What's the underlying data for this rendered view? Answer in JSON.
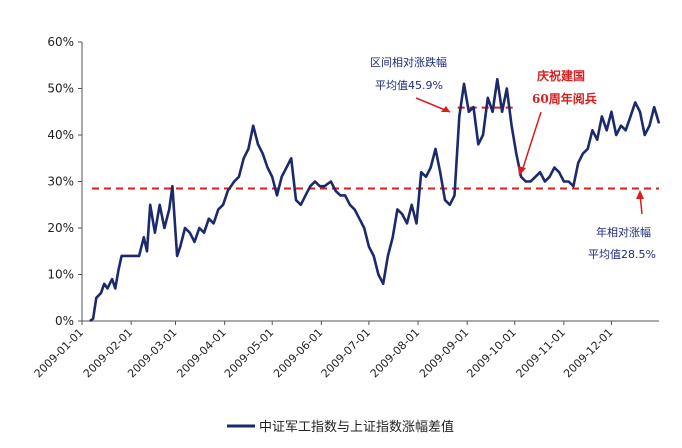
{
  "chart_data": {
    "type": "line",
    "xlabel": "",
    "ylabel": "",
    "ylim": [
      0,
      60
    ],
    "y_ticks": [
      "0%",
      "10%",
      "20%",
      "30%",
      "40%",
      "50%",
      "60%"
    ],
    "x_ticks": [
      "2009-01-01",
      "2009-02-01",
      "2009-03-01",
      "2009-04-01",
      "2009-05-01",
      "2009-06-01",
      "2009-07-01",
      "2009-08-01",
      "2009-09-01",
      "2009-10-01",
      "2009-11-01",
      "2009-12-01"
    ],
    "x_range": [
      "2009-01-01",
      "2009-12-31"
    ],
    "grid": false,
    "legend_position": "bottom",
    "series": [
      {
        "name": "中证军工指数与上证指数涨幅差值",
        "color": "#1c2a6b",
        "x": [
          "2009-01-06",
          "2009-01-08",
          "2009-01-10",
          "2009-01-13",
          "2009-01-15",
          "2009-01-17",
          "2009-01-20",
          "2009-01-22",
          "2009-01-24",
          "2009-01-26",
          "2009-01-29",
          "2009-02-01",
          "2009-02-03",
          "2009-02-06",
          "2009-02-09",
          "2009-02-11",
          "2009-02-13",
          "2009-02-16",
          "2009-02-19",
          "2009-02-22",
          "2009-02-25",
          "2009-02-27",
          "2009-03-02",
          "2009-03-04",
          "2009-03-07",
          "2009-03-10",
          "2009-03-13",
          "2009-03-16",
          "2009-03-19",
          "2009-03-22",
          "2009-03-25",
          "2009-03-28",
          "2009-03-31",
          "2009-04-03",
          "2009-04-07",
          "2009-04-10",
          "2009-04-13",
          "2009-04-16",
          "2009-04-19",
          "2009-04-22",
          "2009-04-25",
          "2009-04-28",
          "2009-05-01",
          "2009-05-04",
          "2009-05-07",
          "2009-05-10",
          "2009-05-13",
          "2009-05-16",
          "2009-05-19",
          "2009-05-22",
          "2009-05-25",
          "2009-05-28",
          "2009-05-31",
          "2009-06-03",
          "2009-06-07",
          "2009-06-10",
          "2009-06-13",
          "2009-06-16",
          "2009-06-19",
          "2009-06-22",
          "2009-06-25",
          "2009-06-28",
          "2009-07-01",
          "2009-07-04",
          "2009-07-07",
          "2009-07-10",
          "2009-07-13",
          "2009-07-16",
          "2009-07-19",
          "2009-07-22",
          "2009-07-25",
          "2009-07-28",
          "2009-07-31",
          "2009-08-03",
          "2009-08-06",
          "2009-08-09",
          "2009-08-12",
          "2009-08-15",
          "2009-08-18",
          "2009-08-21",
          "2009-08-24",
          "2009-08-27",
          "2009-08-30",
          "2009-09-02",
          "2009-09-05",
          "2009-09-08",
          "2009-09-11",
          "2009-09-14",
          "2009-09-17",
          "2009-09-20",
          "2009-09-23",
          "2009-09-26",
          "2009-09-29",
          "2009-10-02",
          "2009-10-05",
          "2009-10-08",
          "2009-10-11",
          "2009-10-14",
          "2009-10-17",
          "2009-10-20",
          "2009-10-23",
          "2009-10-26",
          "2009-10-29",
          "2009-11-01",
          "2009-11-04",
          "2009-11-07",
          "2009-11-10",
          "2009-11-13",
          "2009-11-16",
          "2009-11-19",
          "2009-11-22",
          "2009-11-25",
          "2009-11-28",
          "2009-12-01",
          "2009-12-04",
          "2009-12-07",
          "2009-12-10",
          "2009-12-13",
          "2009-12-16",
          "2009-12-19",
          "2009-12-22",
          "2009-12-25",
          "2009-12-28",
          "2009-12-31"
        ],
        "values": [
          0,
          0.5,
          5,
          6,
          8,
          7,
          9,
          7,
          11,
          14,
          14,
          14,
          14,
          14,
          18,
          15,
          25,
          19,
          25,
          20,
          24,
          29,
          14,
          16,
          20,
          19,
          17,
          20,
          19,
          22,
          21,
          24,
          25,
          28,
          30,
          31,
          35,
          37,
          42,
          38,
          36,
          33,
          31,
          27,
          31,
          33,
          35,
          26,
          25,
          27,
          29,
          30,
          29,
          29,
          30,
          28,
          27,
          27,
          25,
          24,
          22,
          20,
          16,
          14,
          10,
          8,
          14,
          18,
          24,
          23,
          21,
          25,
          21,
          32,
          31,
          33,
          37,
          32,
          26,
          25,
          27,
          44,
          51,
          45,
          46,
          38,
          40,
          48,
          45,
          52,
          45,
          50,
          42,
          36,
          31,
          30,
          30,
          31,
          32,
          30,
          31,
          33,
          32,
          30,
          30,
          29,
          34,
          36,
          37,
          41,
          39,
          44,
          41,
          45,
          40,
          42,
          41,
          44,
          47,
          45,
          40,
          42,
          46,
          42.5
        ]
      }
    ],
    "reference_lines": [
      {
        "value": 28.5,
        "from": "2009-01-01",
        "to": "2009-12-31",
        "color": "#d81e1e",
        "style": "dashed"
      },
      {
        "value": 45.9,
        "from": "2009-08-26",
        "to": "2009-09-30",
        "color": "#d81e1e",
        "style": "dashed"
      }
    ],
    "annotations": [
      {
        "lines": [
          "区间相对涨跌幅",
          "平均值45.9%"
        ],
        "color": "#1f2a7a"
      },
      {
        "lines": [
          "庆祝建国",
          "60周年阅兵"
        ],
        "color": "#d81e1e"
      },
      {
        "lines": [
          "年相对涨幅",
          "平均值28.5%"
        ],
        "color": "#1f2a7a"
      }
    ]
  }
}
